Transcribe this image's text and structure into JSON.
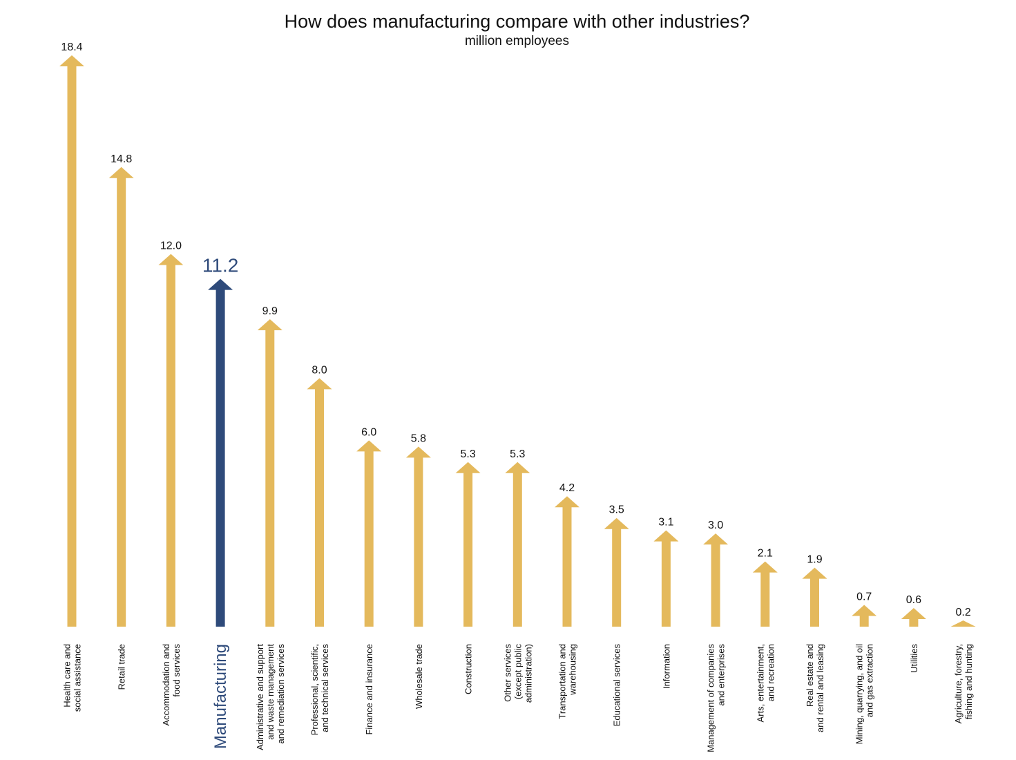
{
  "chart_data": {
    "type": "bar",
    "title": "How does manufacturing compare with other industries?",
    "subtitle": "million employees",
    "xlabel": "",
    "ylabel": "",
    "ylim": [
      0,
      18.4
    ],
    "grid": false,
    "legend": "none",
    "categories": [
      "Health care and\nsocial assistance",
      "Retail trade",
      "Accommodation and\nfood services",
      "Manufacturing",
      "Administrative and support\nand waste management\nand remediation services",
      "Professional, scientific,\nand technical services",
      "Finance and insurance",
      "Wholesale trade",
      "Construction",
      "Other services\n(except public\nadministration)",
      "Transportation and\nwarehousing",
      "Educational services",
      "Information",
      "Management of companies\nand enterprises",
      "Arts, entertainment,\nand recreation",
      "Real estate and\nand rental and leasing",
      "Mining, quarrying, and oil\nand gas extraction",
      "Utilities",
      "Agriculture, forestry,\nfishing and hunting"
    ],
    "values": [
      18.4,
      14.8,
      12.0,
      11.2,
      9.9,
      8.0,
      6.0,
      5.8,
      5.3,
      5.3,
      4.2,
      3.5,
      3.1,
      3.0,
      2.1,
      1.9,
      0.7,
      0.6,
      0.2
    ],
    "value_labels": [
      "18.4",
      "14.8",
      "12.0",
      "11.2",
      "9.9",
      "8.0",
      "6.0",
      "5.8",
      "5.3",
      "5.3",
      "4.2",
      "3.5",
      "3.1",
      "3.0",
      "2.1",
      "1.9",
      "0.7",
      "0.6",
      "0.2"
    ],
    "highlight": "Manufacturing",
    "colors": {
      "default": "#e4b95c",
      "highlight": "#2e4a7a"
    }
  }
}
